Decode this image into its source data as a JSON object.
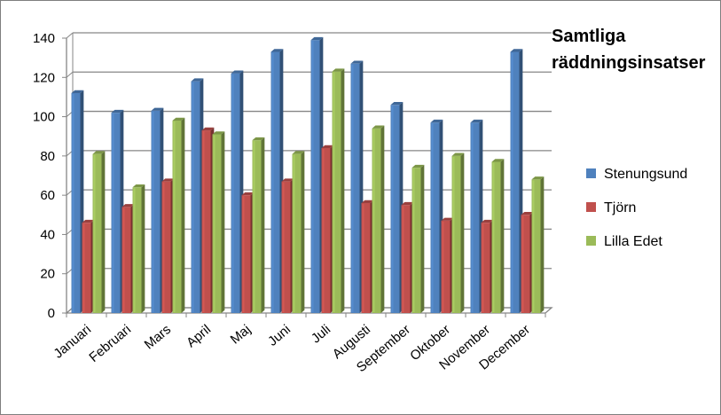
{
  "chart_data": {
    "type": "bar",
    "title": "Samtliga räddningsinsatser",
    "title_lines": [
      "Samtliga",
      "räddningsinsatser"
    ],
    "categories": [
      "Januari",
      "Februari",
      "Mars",
      "April",
      "Maj",
      "Juni",
      "Juli",
      "Augusti",
      "September",
      "Oktober",
      "November",
      "December"
    ],
    "series": [
      {
        "name": "Stenungsund",
        "color": "#4f81bd",
        "values": [
          112,
          102,
          103,
          118,
          122,
          133,
          139,
          127,
          106,
          97,
          97,
          133
        ]
      },
      {
        "name": "Tjörn",
        "color": "#c0504d",
        "values": [
          46,
          54,
          67,
          93,
          60,
          67,
          84,
          56,
          55,
          47,
          46,
          50
        ]
      },
      {
        "name": "Lilla Edet",
        "color": "#9bbb59",
        "values": [
          81,
          64,
          98,
          91,
          88,
          81,
          123,
          94,
          74,
          80,
          77,
          68
        ]
      }
    ],
    "ylim": [
      0,
      140
    ],
    "yticks": [
      0,
      20,
      40,
      60,
      80,
      100,
      120,
      140
    ],
    "xlabel": "",
    "ylabel": "",
    "grid": true,
    "legend_position": "right",
    "style": "3d-clustered-column"
  }
}
